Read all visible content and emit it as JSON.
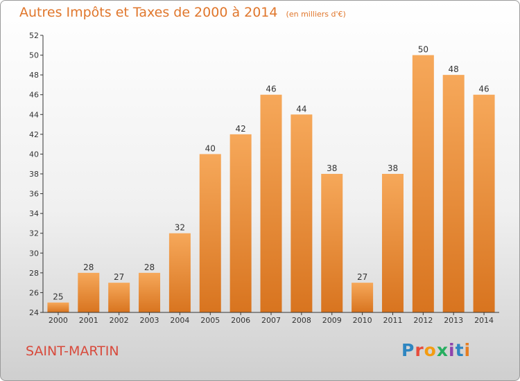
{
  "header": {
    "title": "Autres Impôts et Taxes de 2000 à 2014",
    "unit": "(en milliers d'€)"
  },
  "footer": {
    "commune": "SAINT-MARTIN",
    "logo": "Proxiti"
  },
  "colors": {
    "title": "#e0762b",
    "commune": "#d84a3c",
    "bar_top": "#f6a85a",
    "bar_bottom": "#d8741f",
    "axis": "#333333"
  },
  "chart_data": {
    "type": "bar",
    "title": "Autres Impôts et Taxes de 2000 à 2014",
    "subtitle": "(en milliers d'€)",
    "categories": [
      "2000",
      "2001",
      "2002",
      "2003",
      "2004",
      "2005",
      "2006",
      "2007",
      "2008",
      "2009",
      "2010",
      "2011",
      "2012",
      "2013",
      "2014"
    ],
    "values": [
      25,
      28,
      27,
      28,
      32,
      40,
      42,
      46,
      44,
      38,
      27,
      38,
      50,
      48,
      46
    ],
    "ylim": [
      24,
      52
    ],
    "yticks": [
      24,
      26,
      28,
      30,
      32,
      34,
      36,
      38,
      40,
      42,
      44,
      46,
      48,
      50,
      52
    ],
    "grid": false,
    "legend": "none"
  }
}
